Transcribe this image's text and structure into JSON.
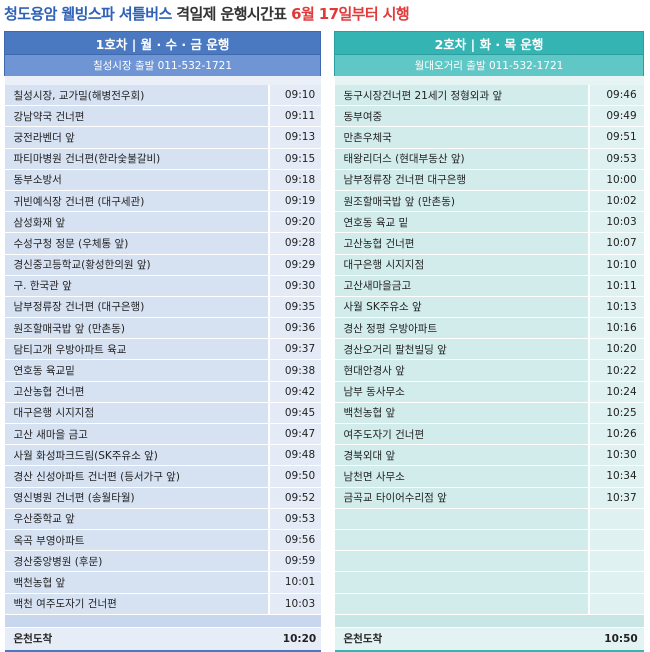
{
  "title": {
    "part1": "청도용암 웰빙스파 셔틀버스",
    "part2": " 격일제 운행시간표 ",
    "part3": "6월 17일부터 시행"
  },
  "left": {
    "header": "1호차 | 월 · 수 · 금 운행",
    "subheader": "칠성시장 출발 011-532-1721",
    "stops": [
      {
        "name": "칠성시장, 교가밀(해병전우회)",
        "time": "09:10"
      },
      {
        "name": "강남약국 건너편",
        "time": "09:11"
      },
      {
        "name": "궁전라벤더 앞",
        "time": "09:13"
      },
      {
        "name": "파티마병원 건너편(한라숯불갈비)",
        "time": "09:15"
      },
      {
        "name": "동부소방서",
        "time": "09:18"
      },
      {
        "name": "귀빈예식장 건너편 (대구세관)",
        "time": "09:19"
      },
      {
        "name": "삼성화재 앞",
        "time": "09:20"
      },
      {
        "name": "수성구청 정문 (우체통 앞)",
        "time": "09:28"
      },
      {
        "name": "경신중고등학교(황성한의원 앞)",
        "time": "09:29"
      },
      {
        "name": "구. 한국관 앞",
        "time": "09:30"
      },
      {
        "name": "남부정류장 건너편 (대구은행)",
        "time": "09:35"
      },
      {
        "name": "원조할매국밥 앞 (만촌동)",
        "time": "09:36"
      },
      {
        "name": "담티고개 우방아파트 육교",
        "time": "09:37"
      },
      {
        "name": "연호동 육교밑",
        "time": "09:38"
      },
      {
        "name": "고산농협 건너편",
        "time": "09:42"
      },
      {
        "name": "대구은행 시지지점",
        "time": "09:45"
      },
      {
        "name": "고산 새마을 금고",
        "time": "09:47"
      },
      {
        "name": "사월 화성파크드림(SK주유소 앞)",
        "time": "09:48"
      },
      {
        "name": "경산 신성아파트 건너편 (등서가구 앞)",
        "time": "09:50"
      },
      {
        "name": "영신병원 건너편 (송월타월)",
        "time": "09:52"
      },
      {
        "name": "우산중학교 앞",
        "time": "09:53"
      },
      {
        "name": "옥곡 부영아파트",
        "time": "09:56"
      },
      {
        "name": "경산중앙병원 (후문)",
        "time": "09:59"
      },
      {
        "name": "백천농협 앞",
        "time": "10:01"
      },
      {
        "name": "백천 여주도자기 건너편",
        "time": "10:03"
      }
    ],
    "final": {
      "name": "온천도착",
      "time": "10:20"
    }
  },
  "right": {
    "header": "2호차 | 화 · 목 운행",
    "subheader": "월대오거리 출발 011-532-1721",
    "stops": [
      {
        "name": "동구시장건너편 21세기 정형외과 앞",
        "time": "09:46"
      },
      {
        "name": "동부여중",
        "time": "09:49"
      },
      {
        "name": "만촌우체국",
        "time": "09:51"
      },
      {
        "name": "태왕리더스 (현대부동산 앞)",
        "time": "09:53"
      },
      {
        "name": "남부정류장 건너편 대구은행",
        "time": "10:00"
      },
      {
        "name": "원조할매국밥 앞 (만촌동)",
        "time": "10:02"
      },
      {
        "name": "연호동 육교 밑",
        "time": "10:03"
      },
      {
        "name": "고산농협 건너편",
        "time": "10:07"
      },
      {
        "name": "대구은행 시지지점",
        "time": "10:10"
      },
      {
        "name": "고산새마을금고",
        "time": "10:11"
      },
      {
        "name": "사월 SK주유소 앞",
        "time": "10:13"
      },
      {
        "name": "경산 정평 우방아파트",
        "time": "10:16"
      },
      {
        "name": "경산오거리 팔천빌딩 앞",
        "time": "10:20"
      },
      {
        "name": "현대안경사 앞",
        "time": "10:22"
      },
      {
        "name": "남부 동사무소",
        "time": "10:24"
      },
      {
        "name": "백천농협 앞",
        "time": "10:25"
      },
      {
        "name": "여주도자기 건너편",
        "time": "10:26"
      },
      {
        "name": "경북외대 앞",
        "time": "10:30"
      },
      {
        "name": "남천면 사무소",
        "time": "10:34"
      },
      {
        "name": "금곡교 타이어수리점 앞",
        "time": "10:37"
      },
      {
        "name": "",
        "time": ""
      },
      {
        "name": "",
        "time": ""
      },
      {
        "name": "",
        "time": ""
      },
      {
        "name": "",
        "time": ""
      },
      {
        "name": "",
        "time": ""
      }
    ],
    "final": {
      "name": "온천도착",
      "time": "10:50"
    }
  }
}
